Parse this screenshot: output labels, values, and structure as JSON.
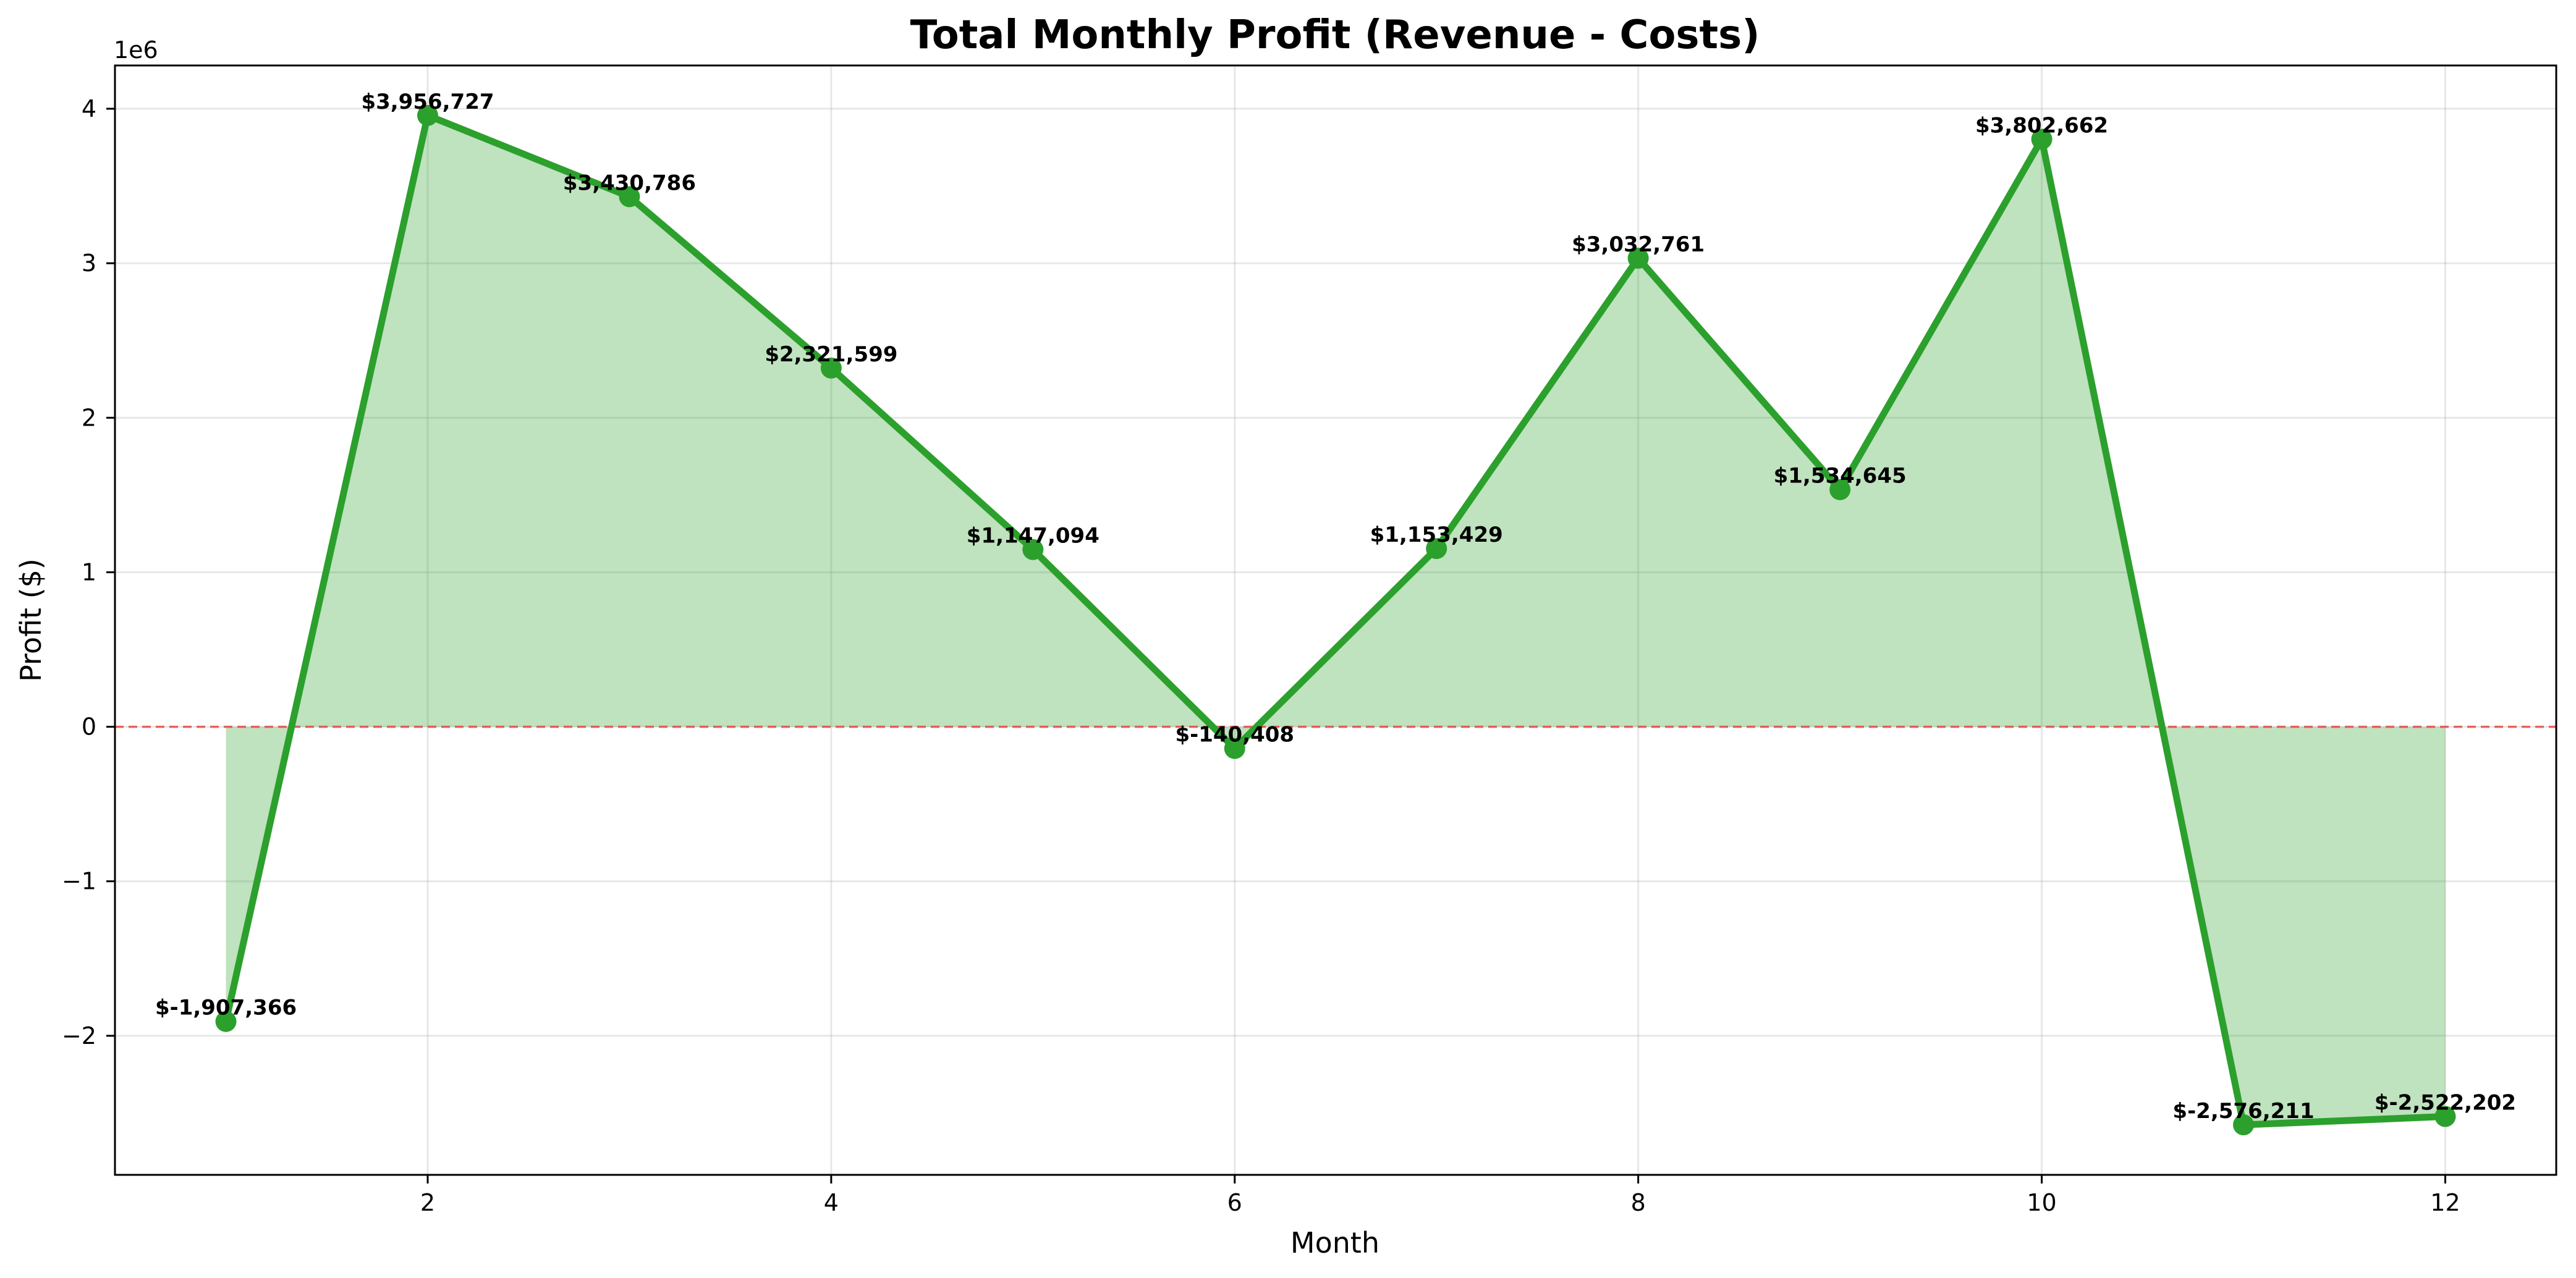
{
  "chart_data": {
    "type": "area",
    "title": "Total Monthly Profit (Revenue - Costs)",
    "xlabel": "Month",
    "ylabel": "Profit ($)",
    "y_offset_text": "1e6",
    "x": [
      1,
      2,
      3,
      4,
      5,
      6,
      7,
      8,
      9,
      10,
      11,
      12
    ],
    "values": [
      -1907366,
      3956727,
      3430786,
      2321599,
      1147094,
      -140408,
      1153429,
      3032761,
      1534645,
      3802662,
      -2576211,
      -2522202
    ],
    "data_labels": [
      "$-1,907,366",
      "$3,956,727",
      "$3,430,786",
      "$2,321,599",
      "$1,147,094",
      "$-140,408",
      "$1,153,429",
      "$3,032,761",
      "$1,534,645",
      "$3,802,662",
      "$-2,576,211",
      "$-2,522,202"
    ],
    "xlim": [
      0.45,
      12.55
    ],
    "ylim": [
      -2900000,
      4280000
    ],
    "x_ticks": [
      2,
      4,
      6,
      8,
      10,
      12
    ],
    "x_tick_labels": [
      "2",
      "4",
      "6",
      "8",
      "10",
      "12"
    ],
    "y_ticks": [
      -2000000,
      -1000000,
      0,
      1000000,
      2000000,
      3000000,
      4000000
    ],
    "y_tick_labels": [
      "−2",
      "−1",
      "0",
      "1",
      "2",
      "3",
      "4"
    ],
    "grid": true,
    "reference_line_y": 0,
    "colors": {
      "line": "#2ca02c",
      "fill": "#2ca02c",
      "reference_line": "#e8403a"
    }
  }
}
